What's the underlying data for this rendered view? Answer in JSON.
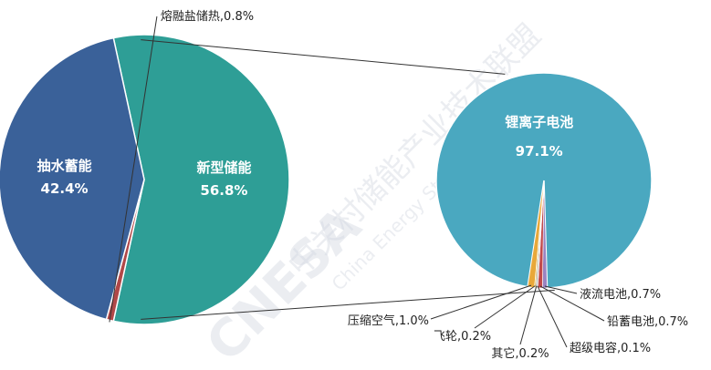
{
  "chart_data": [
    {
      "type": "pie",
      "title": "",
      "slices": [
        {
          "label": "新型储能",
          "value": 56.8,
          "display": "56.8%",
          "color": "#2e9e96"
        },
        {
          "label": "熔融盐储热",
          "value": 0.8,
          "display": "0.8%",
          "color": "#b04848"
        },
        {
          "label": "抽水蓄能",
          "value": 42.4,
          "display": "42.4%",
          "color": "#3a6199"
        }
      ],
      "outside_label": "熔融盐储热,0.8%"
    },
    {
      "type": "pie",
      "title": "",
      "slices": [
        {
          "label": "锂离子电池",
          "value": 97.1,
          "display": "97.1%",
          "color": "#4aa8c0"
        },
        {
          "label": "液流电池",
          "value": 0.7,
          "display": "液流电池,0.7%",
          "color": "#9a84c2"
        },
        {
          "label": "铅蓄电池",
          "value": 0.7,
          "display": "铅蓄电池,0.7%",
          "color": "#c24a4a"
        },
        {
          "label": "超级电容",
          "value": 0.1,
          "display": "超级电容,0.1%",
          "color": "#6b8e4a"
        },
        {
          "label": "其它",
          "value": 0.2,
          "display": "其它,0.2%",
          "color": "#8c8c8c"
        },
        {
          "label": "飞轮",
          "value": 0.2,
          "display": "飞轮,0.2%",
          "color": "#e3c25a"
        },
        {
          "label": "压缩空气",
          "value": 1.0,
          "display": "压缩空气,1.0%",
          "color": "#e8a83a"
        }
      ]
    }
  ],
  "watermark": {
    "cn": "中关村储能产业技术联盟",
    "en": "China Energy Storage Alliance",
    "logo": "CNESA"
  }
}
